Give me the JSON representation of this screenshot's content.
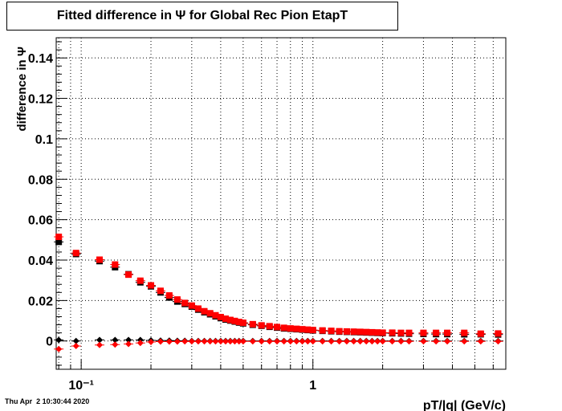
{
  "title": "Fitted difference in  Ψ  for Global Rec Pion EtapT",
  "timestamp": "Thu Apr  2 10:30:44 2020",
  "chart_data": {
    "type": "scatter",
    "title": "Fitted difference in  Ψ  for Global Rec Pion EtapT",
    "xlabel": "pT/|q| (GeV/c)",
    "ylabel": "difference in Ψ",
    "xscale": "log",
    "xlim": [
      0.078,
      6.8
    ],
    "ylim": [
      -0.014,
      0.15
    ],
    "grid": true,
    "x_tick_labels": [
      "10⁻¹",
      "1"
    ],
    "y_tick_labels": [
      "0",
      "0.02",
      "0.04",
      "0.06",
      "0.08",
      "0.1",
      "0.12",
      "0.14"
    ],
    "y_ticks": [
      0,
      0.02,
      0.04,
      0.06,
      0.08,
      0.1,
      0.12,
      0.14
    ],
    "x_major_ticks": [
      0.1,
      1
    ],
    "series": [
      {
        "marker": "square",
        "color": "#000000",
        "x": [
          0.08,
          0.095,
          0.12,
          0.14,
          0.16,
          0.18,
          0.2,
          0.22,
          0.24,
          0.26,
          0.28,
          0.3,
          0.32,
          0.34,
          0.36,
          0.38,
          0.4,
          0.42,
          0.44,
          0.46,
          0.48,
          0.5,
          0.55,
          0.6,
          0.65,
          0.7,
          0.75,
          0.8,
          0.85,
          0.9,
          0.95,
          1.0,
          1.1,
          1.2,
          1.3,
          1.4,
          1.5,
          1.6,
          1.7,
          1.8,
          1.9,
          2.0,
          2.2,
          2.4,
          2.6,
          3.0,
          3.4,
          3.8,
          4.5,
          5.3,
          6.3
        ],
        "y": [
          0.049,
          0.043,
          0.0395,
          0.0365,
          0.033,
          0.029,
          0.027,
          0.024,
          0.0215,
          0.0195,
          0.0183,
          0.017,
          0.0155,
          0.0142,
          0.0132,
          0.0122,
          0.0113,
          0.0106,
          0.0101,
          0.0096,
          0.0091,
          0.0087,
          0.008,
          0.0075,
          0.007,
          0.0066,
          0.0062,
          0.006,
          0.0058,
          0.0056,
          0.0054,
          0.0052,
          0.005,
          0.0048,
          0.0046,
          0.0045,
          0.0044,
          0.0043,
          0.0042,
          0.0041,
          0.004,
          0.0039,
          0.0038,
          0.0037,
          0.0036,
          0.0035,
          0.0034,
          0.0034,
          0.0033,
          0.0033,
          0.0032
        ]
      },
      {
        "marker": "square",
        "color": "#ff0000",
        "x": [
          0.08,
          0.095,
          0.12,
          0.14,
          0.16,
          0.18,
          0.2,
          0.22,
          0.24,
          0.26,
          0.28,
          0.3,
          0.32,
          0.34,
          0.36,
          0.38,
          0.4,
          0.42,
          0.44,
          0.46,
          0.48,
          0.5,
          0.55,
          0.6,
          0.65,
          0.7,
          0.75,
          0.8,
          0.85,
          0.9,
          0.95,
          1.0,
          1.1,
          1.2,
          1.3,
          1.4,
          1.5,
          1.6,
          1.7,
          1.8,
          1.9,
          2.0,
          2.2,
          2.4,
          2.6,
          3.0,
          3.4,
          3.8,
          4.5,
          5.3,
          6.3
        ],
        "y": [
          0.0515,
          0.0435,
          0.0402,
          0.0378,
          0.0328,
          0.0298,
          0.0275,
          0.0248,
          0.0225,
          0.0205,
          0.0188,
          0.0175,
          0.016,
          0.0147,
          0.0137,
          0.0127,
          0.0118,
          0.011,
          0.0104,
          0.0099,
          0.0094,
          0.009,
          0.0083,
          0.0077,
          0.0073,
          0.0069,
          0.0065,
          0.0062,
          0.006,
          0.0058,
          0.0056,
          0.0054,
          0.0052,
          0.005,
          0.0048,
          0.0047,
          0.0046,
          0.0045,
          0.0044,
          0.0043,
          0.0042,
          0.0041,
          0.0041,
          0.004,
          0.004,
          0.004,
          0.004,
          0.004,
          0.004,
          0.0036,
          0.0037
        ]
      },
      {
        "marker": "diamond",
        "color": "#000000",
        "x": [
          0.08,
          0.095,
          0.12,
          0.14,
          0.16,
          0.18,
          0.2,
          0.22,
          0.24,
          0.26,
          0.28,
          0.3,
          0.32,
          0.34,
          0.36,
          0.38,
          0.4,
          0.42,
          0.44,
          0.46,
          0.48,
          0.5,
          0.55,
          0.6,
          0.65,
          0.7,
          0.75,
          0.8,
          0.85,
          0.9,
          0.95,
          1.0,
          1.1,
          1.2,
          1.3,
          1.4,
          1.5,
          1.6,
          1.7,
          1.8,
          1.9,
          2.0,
          2.2,
          2.4,
          2.6,
          3.0,
          3.4,
          3.8,
          4.5,
          5.3,
          6.3
        ],
        "y": [
          0.0005,
          0.0,
          0.0005,
          0.0005,
          0.0005,
          0.0005,
          0.0003,
          0.0002,
          0.0002,
          0.0001,
          0.0001,
          0.0,
          0.0,
          0.0,
          0.0,
          0.0,
          0.0,
          0.0,
          0.0,
          0.0,
          0.0,
          0.0,
          0.0,
          0.0,
          0.0,
          0.0,
          0.0,
          0.0,
          0.0,
          0.0,
          0.0,
          0.0,
          0.0,
          0.0,
          0.0,
          0.0,
          0.0,
          0.0,
          0.0,
          0.0,
          0.0,
          0.0,
          0.0,
          0.0,
          0.0,
          0.0,
          0.0,
          0.0,
          0.0,
          0.0,
          0.0
        ]
      },
      {
        "marker": "diamond",
        "color": "#ff0000",
        "x": [
          0.08,
          0.095,
          0.12,
          0.14,
          0.16,
          0.18,
          0.2,
          0.22,
          0.24,
          0.26,
          0.28,
          0.3,
          0.32,
          0.34,
          0.36,
          0.38,
          0.4,
          0.42,
          0.44,
          0.46,
          0.48,
          0.5,
          0.55,
          0.6,
          0.65,
          0.7,
          0.75,
          0.8,
          0.85,
          0.9,
          0.95,
          1.0,
          1.1,
          1.2,
          1.3,
          1.4,
          1.5,
          1.6,
          1.7,
          1.8,
          1.9,
          2.0,
          2.2,
          2.4,
          2.6,
          3.0,
          3.4,
          3.8,
          4.5,
          5.3,
          6.3
        ],
        "y": [
          -0.004,
          -0.0025,
          -0.002,
          -0.0018,
          -0.0015,
          -0.001,
          -0.0005,
          -0.0003,
          -0.0003,
          -0.0003,
          -0.0002,
          -0.0002,
          -0.0002,
          -0.0002,
          -0.0002,
          -0.0002,
          -0.0002,
          -0.0002,
          -0.0002,
          -0.0002,
          -0.0002,
          -0.0002,
          -0.0002,
          -0.0002,
          -0.0002,
          -0.0002,
          -0.0002,
          -0.0002,
          -0.0002,
          -0.0002,
          -0.0002,
          -0.0002,
          -0.0002,
          -0.0002,
          -0.0002,
          -0.0002,
          -0.0002,
          -0.0002,
          -0.0002,
          -0.0002,
          -0.0002,
          -0.0002,
          -0.0002,
          -0.0002,
          -0.0002,
          -0.0002,
          -0.0002,
          -0.0002,
          -0.0002,
          -0.0002,
          -0.0002
        ]
      }
    ]
  }
}
